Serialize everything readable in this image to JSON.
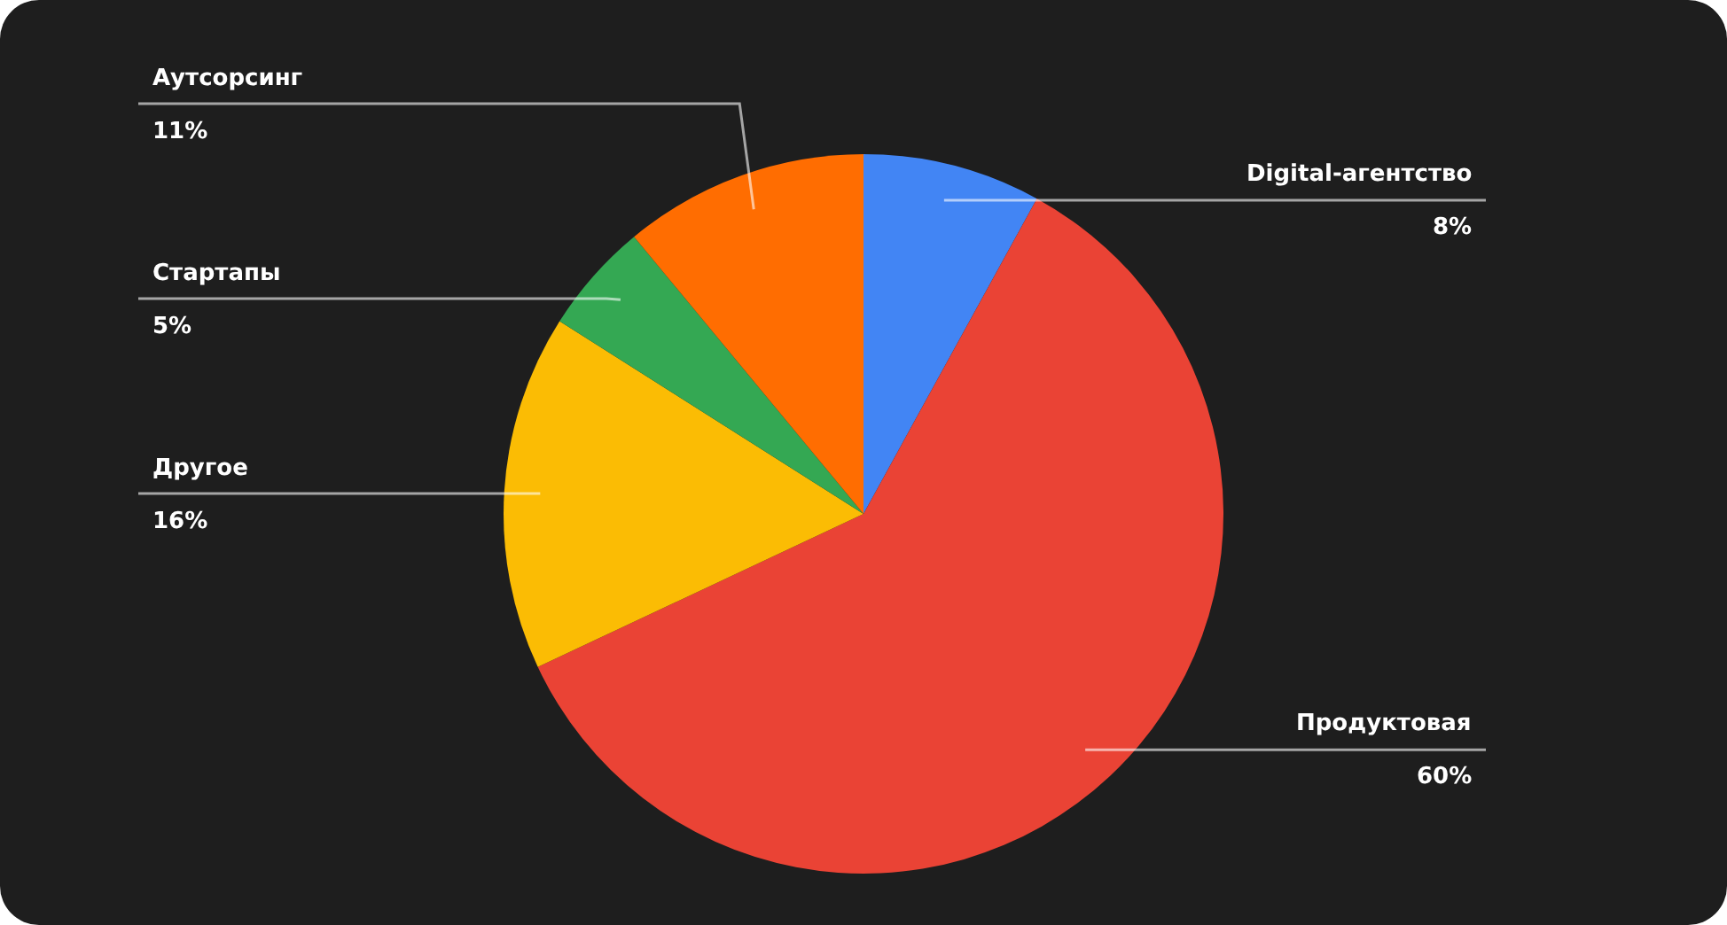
{
  "chart_data": {
    "type": "pie",
    "categories": [
      "Digital-агентство",
      "Продуктовая",
      "Другое",
      "Стартапы",
      "Аутсорсинг"
    ],
    "values": [
      8,
      60,
      16,
      5,
      11
    ],
    "value_labels": [
      "8%",
      "60%",
      "16%",
      "5%",
      "11%"
    ],
    "colors": [
      "#4285f4",
      "#ea4335",
      "#fbbc04",
      "#34a853",
      "#ff6d01"
    ]
  }
}
